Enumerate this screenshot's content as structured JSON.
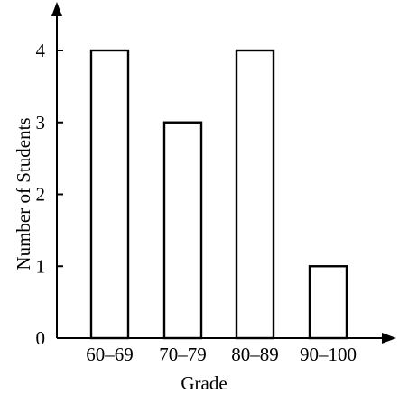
{
  "chart_data": {
    "type": "bar",
    "categories": [
      "60–69",
      "70–79",
      "80–89",
      "90–100"
    ],
    "values": [
      4,
      3,
      4,
      1
    ],
    "title": "",
    "xlabel": "Grade",
    "ylabel": "Number of Students",
    "ylim": [
      0,
      4
    ],
    "yticks": [
      0,
      1,
      2,
      3,
      4
    ],
    "grid": false,
    "bar_fill": "#ffffff",
    "bar_stroke": "#000000"
  }
}
